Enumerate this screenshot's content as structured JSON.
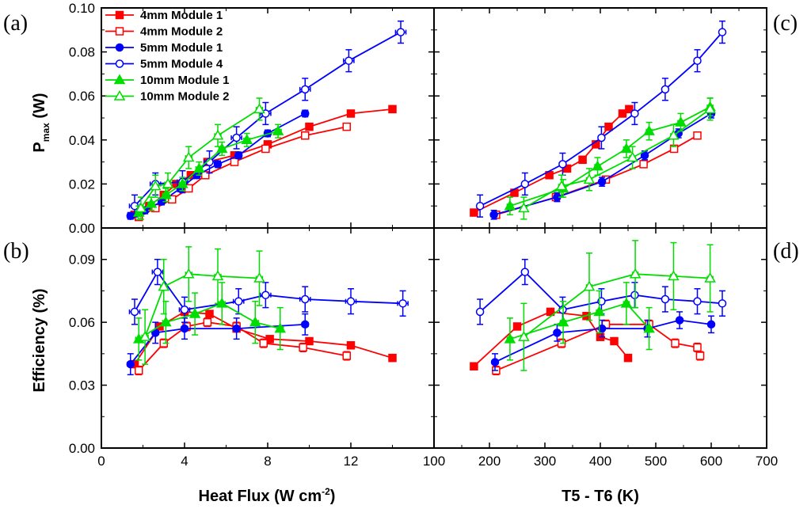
{
  "chart_data": {
    "type": "scatter",
    "series_styles": [
      {
        "name": "4mm Module 1",
        "color": "#ff0000",
        "marker": "square",
        "filled": true
      },
      {
        "name": "4mm Module 2",
        "color": "#ff0000",
        "marker": "square",
        "filled": false
      },
      {
        "name": "5mm Module 1",
        "color": "#0000ff",
        "marker": "circle",
        "filled": true
      },
      {
        "name": "5mm Module 4",
        "color": "#0000ff",
        "marker": "circle",
        "filled": false
      },
      {
        "name": "10mm Module 1",
        "color": "#00dd00",
        "marker": "triangle",
        "filled": true
      },
      {
        "name": "10mm Module 2",
        "color": "#00dd00",
        "marker": "triangle",
        "filled": false
      }
    ],
    "legend_placement": "top-left of panel (a)",
    "panels": [
      {
        "id": "a",
        "label": "(a)",
        "ylabel_main": "P",
        "ylabel_sub": "max",
        "ylabel_unit": " (W)",
        "xlim": [
          0,
          16
        ],
        "ylim": [
          0,
          0.1
        ],
        "yticks": [
          "0.00",
          "0.02",
          "0.04",
          "0.06",
          "0.08",
          "0.10"
        ],
        "ytick_values": [
          0,
          0.02,
          0.04,
          0.06,
          0.08,
          0.1
        ],
        "show_y_tick_labels": true,
        "show_x_tick_labels": false,
        "series": [
          {
            "name": "4mm Module 1",
            "x": [
              1.6,
              2.3,
              3.0,
              3.6,
              4.3,
              5.1,
              6.4,
              8.0,
              10.0,
              12.0,
              14.0
            ],
            "y": [
              0.006,
              0.01,
              0.015,
              0.02,
              0.024,
              0.03,
              0.033,
              0.038,
              0.046,
              0.052,
              0.054
            ],
            "yerr": 0.001,
            "xerr": 0.15
          },
          {
            "name": "4mm Module 2",
            "x": [
              1.8,
              2.6,
              3.4,
              4.2,
              5.0,
              6.4,
              7.9,
              9.8,
              11.8
            ],
            "y": [
              0.005,
              0.009,
              0.013,
              0.018,
              0.024,
              0.03,
              0.036,
              0.042,
              0.046
            ],
            "yerr": 0.001,
            "xerr": 0.15
          },
          {
            "name": "5mm Module 1",
            "x": [
              1.4,
              2.1,
              2.9,
              3.8,
              4.6,
              5.6,
              6.6,
              8.0,
              9.8
            ],
            "y": [
              0.0055,
              0.008,
              0.012,
              0.018,
              0.024,
              0.029,
              0.033,
              0.043,
              0.052
            ],
            "yerr": 0.0015,
            "xerr": 0.15
          },
          {
            "name": "5mm Module 4",
            "x": [
              1.6,
              2.6,
              3.9,
              5.2,
              6.5,
              7.9,
              9.8,
              11.9,
              14.4
            ],
            "y": [
              0.01,
              0.02,
              0.021,
              0.03,
              0.041,
              0.052,
              0.063,
              0.076,
              0.089
            ],
            "yerr": 0.005,
            "xerr": 0.25
          },
          {
            "name": "10mm Module 1",
            "x": [
              1.8,
              2.4,
              3.1,
              3.9,
              4.7,
              5.8,
              7.0,
              8.5
            ],
            "y": [
              0.007,
              0.011,
              0.015,
              0.02,
              0.027,
              0.036,
              0.04,
              0.044
            ],
            "yerr": 0.003,
            "xerr": 0.15
          },
          {
            "name": "10mm Module 2",
            "x": [
              1.9,
              2.6,
              3.2,
              4.2,
              5.6,
              7.6
            ],
            "y": [
              0.009,
              0.019,
              0.02,
              0.032,
              0.042,
              0.054
            ],
            "yerr": 0.005,
            "xerr": 0.15
          }
        ]
      },
      {
        "id": "b",
        "label": "(b)",
        "ylabel": "Efficiency (%)",
        "xlabel_main": "Heat Flux (W cm",
        "xlabel_sup": "-2",
        "xlabel_end": ")",
        "xlim": [
          0,
          16
        ],
        "ylim": [
          0,
          0.105
        ],
        "xticks": [
          "0",
          "4",
          "8",
          "12"
        ],
        "xtick_values": [
          0,
          4,
          8,
          12
        ],
        "yticks": [
          "0.00",
          "0.03",
          "0.06",
          "0.09"
        ],
        "ytick_values": [
          0,
          0.03,
          0.06,
          0.09
        ],
        "show_y_tick_labels": true,
        "show_x_tick_labels": true,
        "series": [
          {
            "name": "4mm Module 1",
            "x": [
              1.6,
              2.8,
              4.0,
              5.2,
              6.5,
              8.1,
              10.0,
              12.0,
              14.0
            ],
            "y": [
              0.04,
              0.058,
              0.065,
              0.064,
              0.057,
              0.052,
              0.051,
              0.049,
              0.043
            ],
            "yerr": 0.001,
            "xerr": 0.15
          },
          {
            "name": "4mm Module 2",
            "x": [
              1.8,
              3.0,
              4.1,
              5.1,
              6.5,
              7.8,
              9.7,
              11.8
            ],
            "y": [
              0.037,
              0.05,
              0.058,
              0.06,
              0.058,
              0.05,
              0.048,
              0.044
            ],
            "yerr": 0.002,
            "xerr": 0.15
          },
          {
            "name": "5mm Module 1",
            "x": [
              1.4,
              2.6,
              4.0,
              6.5,
              9.8
            ],
            "y": [
              0.04,
              0.055,
              0.057,
              0.057,
              0.059
            ],
            "yerr": 0.005,
            "xerr": 0.15
          },
          {
            "name": "5mm Module 4",
            "x": [
              1.6,
              2.7,
              4.0,
              6.6,
              7.9,
              9.8,
              12.0,
              14.5
            ],
            "y": [
              0.065,
              0.084,
              0.066,
              0.07,
              0.073,
              0.071,
              0.07,
              0.069
            ],
            "yerr": 0.006,
            "xerr": 0.25
          },
          {
            "name": "10mm Module 1",
            "x": [
              1.8,
              3.1,
              4.5,
              5.8,
              7.4,
              8.6
            ],
            "y": [
              0.052,
              0.06,
              0.064,
              0.069,
              0.06,
              0.057
            ],
            "yerr": 0.01,
            "xerr": 0.15
          },
          {
            "name": "10mm Module 2",
            "x": [
              2.1,
              3.0,
              4.2,
              5.6,
              7.6
            ],
            "y": [
              0.053,
              0.077,
              0.083,
              0.082,
              0.081
            ],
            "yerr": 0.013,
            "xerr": 0.15
          }
        ]
      },
      {
        "id": "c",
        "label": "(c)",
        "xlim": [
          100,
          700
        ],
        "ylim": [
          0,
          0.1
        ],
        "yticks": [
          "0.00",
          "0.02",
          "0.04",
          "0.06",
          "0.08",
          "0.10"
        ],
        "ytick_values": [
          0,
          0.02,
          0.04,
          0.06,
          0.08,
          0.1
        ],
        "show_y_tick_labels": false,
        "show_x_tick_labels": false,
        "series": [
          {
            "name": "4mm Module 1",
            "x": [
              172,
              245,
              308,
              340,
              368,
              392,
              415,
              440,
              452
            ],
            "y": [
              0.007,
              0.016,
              0.024,
              0.027,
              0.031,
              0.038,
              0.046,
              0.052,
              0.054
            ],
            "yerr": 0.001,
            "xerr": 5
          },
          {
            "name": "4mm Module 2",
            "x": [
              212,
              320,
              410,
              478,
              533,
              575
            ],
            "y": [
              0.006,
              0.014,
              0.022,
              0.029,
              0.036,
              0.042
            ],
            "yerr": 0.001,
            "xerr": 5
          },
          {
            "name": "5mm Module 1",
            "x": [
              208,
              322,
              403,
              480,
              541,
              600
            ],
            "y": [
              0.006,
              0.014,
              0.021,
              0.033,
              0.043,
              0.052
            ],
            "yerr": 0.002,
            "xerr": 5
          },
          {
            "name": "5mm Module 4",
            "x": [
              183,
              264,
              332,
              402,
              462,
              517,
              575,
              620
            ],
            "y": [
              0.01,
              0.02,
              0.029,
              0.041,
              0.052,
              0.063,
              0.076,
              0.089
            ],
            "yerr": 0.005,
            "xerr": 5
          },
          {
            "name": "10mm Module 1",
            "x": [
              237,
              333,
              395,
              447,
              488,
              545,
              598
            ],
            "y": [
              0.01,
              0.018,
              0.028,
              0.036,
              0.044,
              0.048,
              0.055
            ],
            "yerr": 0.004,
            "xerr": 5
          },
          {
            "name": "10mm Module 2",
            "x": [
              262,
              330,
              380,
              458,
              532,
              598
            ],
            "y": [
              0.009,
              0.019,
              0.022,
              0.032,
              0.042,
              0.054
            ],
            "yerr": 0.005,
            "xerr": 5
          }
        ]
      },
      {
        "id": "d",
        "label": "(d)",
        "xlabel": "T5 - T6 (K)",
        "xlim": [
          100,
          700
        ],
        "ylim": [
          0,
          0.105
        ],
        "xticks": [
          "100",
          "200",
          "300",
          "400",
          "500",
          "600",
          "700"
        ],
        "xtick_values": [
          100,
          200,
          300,
          400,
          500,
          600,
          700
        ],
        "yticks": [
          "0.00",
          "0.03",
          "0.06",
          "0.09"
        ],
        "ytick_values": [
          0,
          0.03,
          0.06,
          0.09
        ],
        "show_y_tick_labels": false,
        "show_x_tick_labels": true,
        "series": [
          {
            "name": "4mm Module 1",
            "x": [
              172,
              250,
              310,
              375,
              400,
              425,
              450
            ],
            "y": [
              0.039,
              0.058,
              0.065,
              0.063,
              0.053,
              0.051,
              0.043
            ],
            "yerr": 0.001,
            "xerr": 5
          },
          {
            "name": "4mm Module 2",
            "x": [
              212,
              330,
              410,
              488,
              535,
              575,
              580
            ],
            "y": [
              0.037,
              0.05,
              0.059,
              0.059,
              0.05,
              0.048,
              0.044
            ],
            "yerr": 0.002,
            "xerr": 5
          },
          {
            "name": "5mm Module 1",
            "x": [
              210,
              322,
              403,
              485,
              543,
              600
            ],
            "y": [
              0.041,
              0.055,
              0.057,
              0.057,
              0.061,
              0.059
            ],
            "yerr": 0.004,
            "xerr": 5
          },
          {
            "name": "5mm Module 4",
            "x": [
              183,
              264,
              332,
              402,
              462,
              517,
              575,
              620
            ],
            "y": [
              0.065,
              0.084,
              0.066,
              0.07,
              0.073,
              0.071,
              0.07,
              0.069
            ],
            "yerr": 0.006,
            "xerr": 5
          },
          {
            "name": "10mm Module 1",
            "x": [
              237,
              333,
              398,
              447,
              488
            ],
            "y": [
              0.052,
              0.06,
              0.065,
              0.069,
              0.057
            ],
            "yerr": 0.01,
            "xerr": 5
          },
          {
            "name": "10mm Module 2",
            "x": [
              262,
              380,
              463,
              532,
              598
            ],
            "y": [
              0.053,
              0.077,
              0.083,
              0.082,
              0.081
            ],
            "yerr": 0.016,
            "xerr": 5
          }
        ]
      }
    ]
  }
}
